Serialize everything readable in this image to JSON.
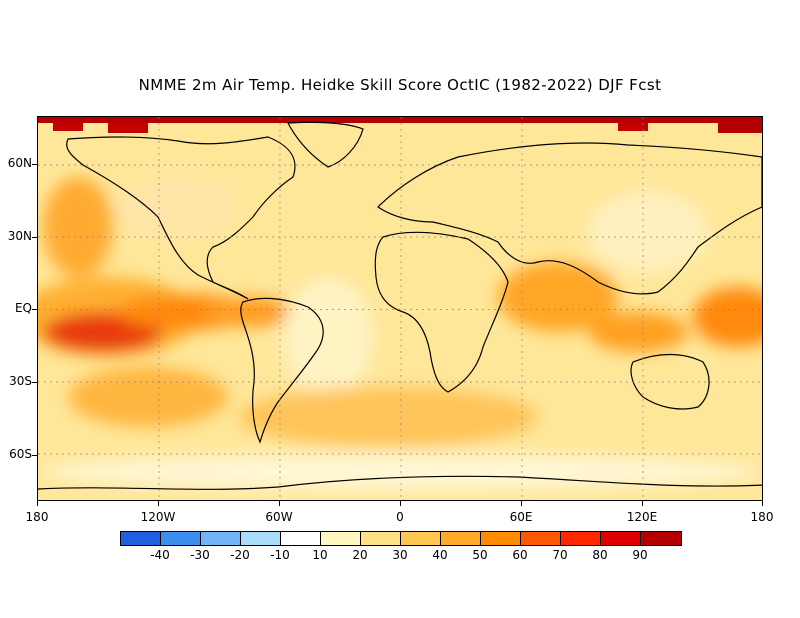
{
  "title": "NMME 2m Air Temp. Heidke Skill Score OctIC (1982-2022) DJF Fcst",
  "axes": {
    "lat_labels": [
      "60N",
      "30N",
      "EQ",
      "30S",
      "60S"
    ],
    "lon_labels": [
      "180",
      "120W",
      "60W",
      "0",
      "60E",
      "120E",
      "180"
    ]
  },
  "colorbar": {
    "colors": [
      "#1f5fe0",
      "#3c8ff0",
      "#72b4f5",
      "#a8dcf8",
      "#ffffff",
      "#fff6c0",
      "#ffe288",
      "#ffc850",
      "#ffaa28",
      "#ff8c00",
      "#ff5a00",
      "#ff2800",
      "#dc0000",
      "#b40000",
      "#8c0000"
    ],
    "labels": [
      "-40",
      "-30",
      "-20",
      "-10",
      "10",
      "20",
      "30",
      "40",
      "50",
      "60",
      "70",
      "80",
      "90"
    ]
  },
  "chart_data": {
    "type": "heatmap",
    "title": "NMME 2m Air Temp. Heidke Skill Score OctIC (1982-2022) DJF Fcst",
    "xlabel": "",
    "ylabel": "",
    "x_range": [
      -180,
      180
    ],
    "y_range": [
      -80,
      80
    ],
    "colorbar_bounds": [
      -40,
      -30,
      -20,
      -10,
      10,
      20,
      30,
      40,
      50,
      60,
      70,
      80,
      90
    ],
    "regions": [
      {
        "lon": -150,
        "lat": 0,
        "value": 70
      },
      {
        "lon": -110,
        "lat": 5,
        "value": 60
      },
      {
        "lon": -140,
        "lat": 40,
        "value": 40
      },
      {
        "lon": 70,
        "lat": 5,
        "value": 55
      },
      {
        "lon": 170,
        "lat": 5,
        "value": 60
      },
      {
        "lon": -60,
        "lat": -60,
        "value": 30
      },
      {
        "lon": 0,
        "lat": 75,
        "value": 20
      },
      {
        "lon": -170,
        "lat": 77,
        "value": 80
      },
      {
        "lon": 175,
        "lat": 77,
        "value": 80
      }
    ]
  }
}
